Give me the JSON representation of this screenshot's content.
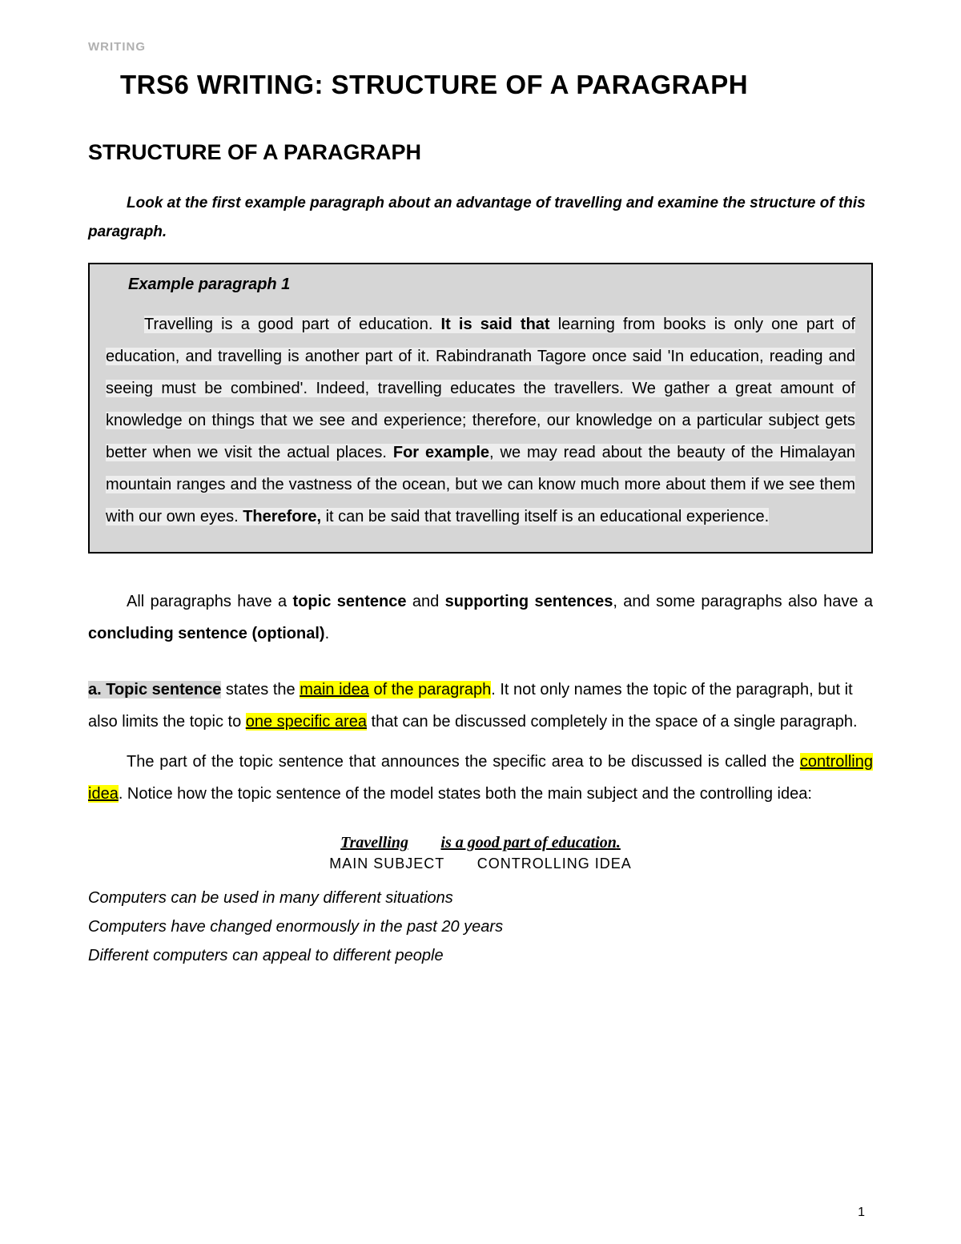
{
  "header_label": "WRITING",
  "main_title": "TRS6 WRITING: STRUCTURE OF A PARAGRAPH",
  "section_title": "STRUCTURE OF A PARAGRAPH",
  "intro_text": "Look at the first example paragraph about an advantage of travelling and examine the structure of this paragraph.",
  "example": {
    "label": "Example paragraph 1",
    "seg1": "Travelling is a good part of education. ",
    "seg2_bold": "It is said that",
    "seg3": " learning from books is only one part of education, and travelling is another part of it. Rabindranath Tagore once said 'In education, reading and seeing must be combined'. Indeed, travelling educates the travellers. We gather a great amount of knowledge on things that we see and experience; therefore, our knowledge on a particular subject gets better when we visit the actual places. ",
    "seg4_bold": "For example",
    "seg5": ", we may read about the beauty of the Himalayan mountain ranges and the vastness of the ocean, but we can know much more about them if we see them with our own eyes. ",
    "seg6_bold": "Therefore,",
    "seg7": " it can be said that travelling itself is an educational experience."
  },
  "body1": {
    "p1": "All paragraphs have a ",
    "b1": "topic sentence",
    "p2": " and ",
    "b2": "supporting sentences",
    "p3": ", and some paragraphs also have a ",
    "b3": "concluding sentence (optional)",
    "p4": "."
  },
  "topic": {
    "label": "a. Topic sentence",
    "t1": " states the ",
    "hl1": "main idea",
    "hl1b": " of the paragraph",
    "t2": ". It not only names the topic of the paragraph, but it also limits the topic to ",
    "hl2": "one specific area",
    "t3": " that can be discussed completely in the space of a single paragraph.",
    "p2a": "The part of the topic sentence that announces the specific area to be discussed is called the ",
    "hl3": "controlling idea",
    "p2b": ". Notice how the topic sentence of the model states both the main subject and the controlling idea:"
  },
  "structure": {
    "subject": "Travelling",
    "idea": "is a good part of education",
    "subject_label": "MAIN SUBJECT",
    "idea_label": "CONTROLLING IDEA"
  },
  "examples": {
    "e1": "Computers can be used in many different situations",
    "e2": "Computers have changed enormously in the past 20 years",
    "e3": "Different computers can appeal to different people"
  },
  "page_number": "1",
  "colors": {
    "header_gray": "#b0b0b0",
    "box_bg": "#d6d6d6",
    "line_bg": "#eeeeee",
    "highlight": "#ffff00",
    "text": "#000000",
    "page_bg": "#ffffff"
  }
}
